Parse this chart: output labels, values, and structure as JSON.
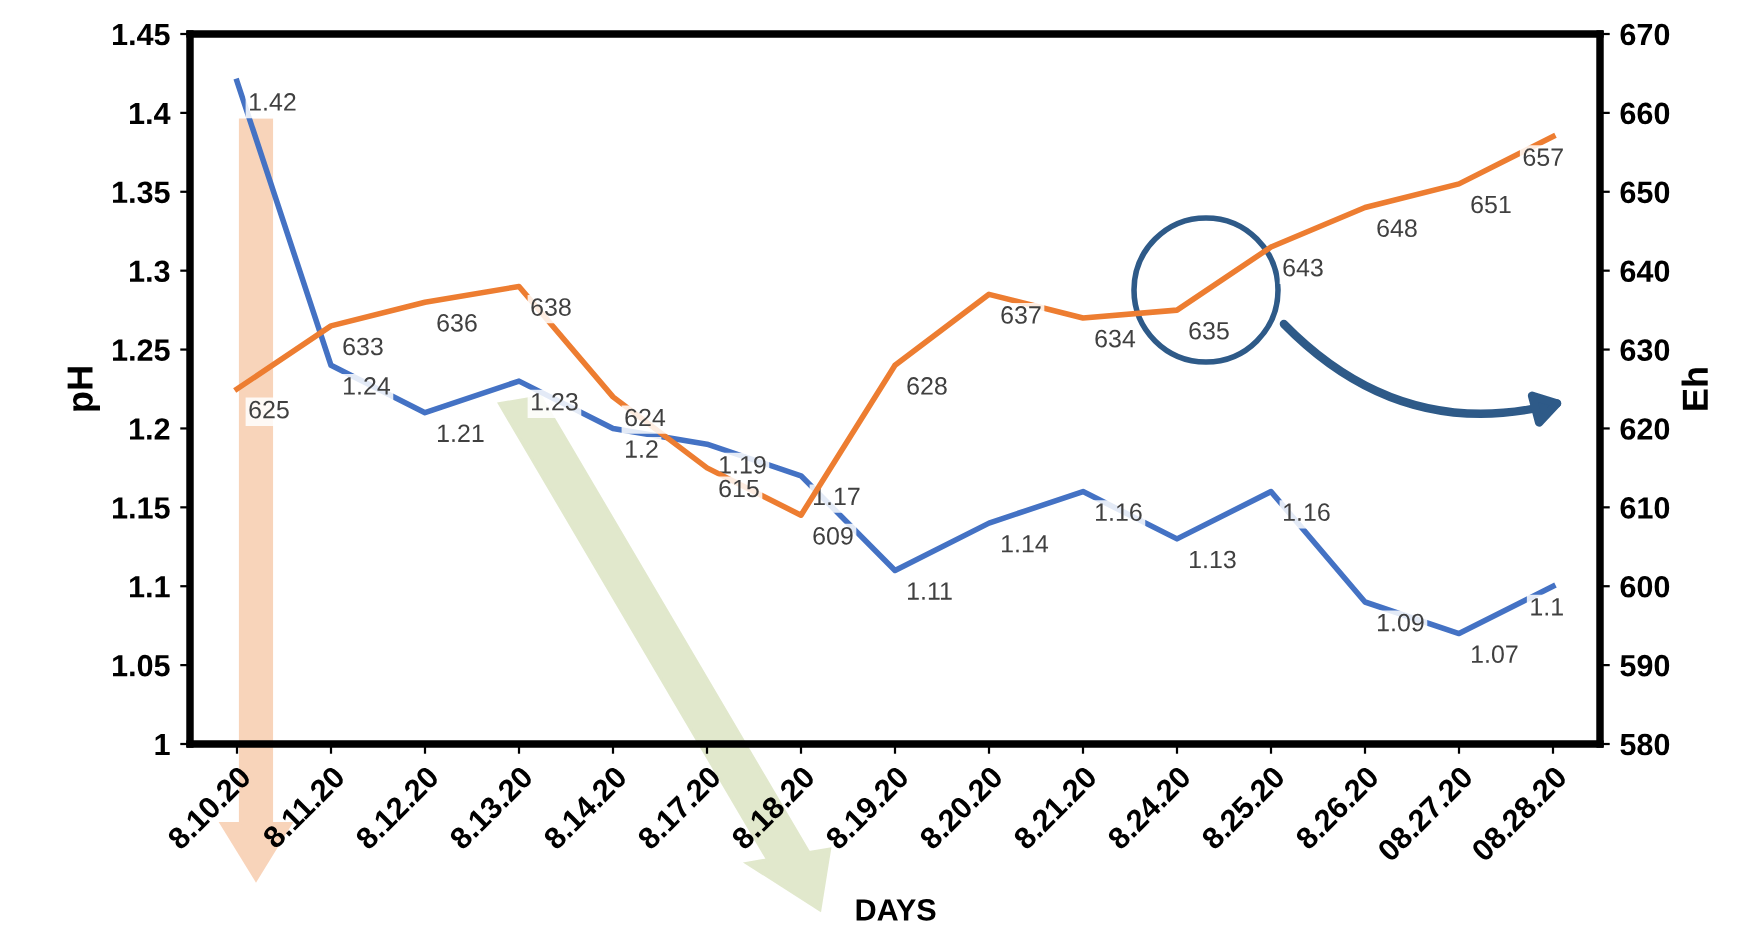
{
  "chart_data": {
    "type": "line",
    "xlabel": "DAYS",
    "ylabel": "pH",
    "y2label": "Eh",
    "categories": [
      "8.10.20",
      "8.11.20",
      "8.12.20",
      "8.13.20",
      "8.14.20",
      "8.17.20",
      "8.18.20",
      "8.19.20",
      "8.20.20",
      "8.21.20",
      "8.24.20",
      "8.25.20",
      "8.26.20",
      "08.27.20",
      "08.28.20"
    ],
    "series": [
      {
        "color": "#4472c4",
        "values": [
          1.42,
          1.24,
          1.21,
          1.23,
          1.2,
          1.19,
          1.17,
          1.11,
          1.14,
          1.16,
          1.13,
          1.16,
          1.09,
          1.07,
          1.1
        ]
      },
      {
        "color": "#ed7d31",
        "axis": "y2",
        "values": [
          625,
          633,
          636,
          638,
          624,
          615,
          609,
          628,
          637,
          634,
          635,
          643,
          648,
          651,
          657
        ]
      }
    ],
    "ylim": [
      1,
      1.45
    ],
    "yticks": [
      1,
      1.05,
      1.1,
      1.15,
      1.2,
      1.25,
      1.3,
      1.35,
      1.4,
      1.45
    ],
    "y2lim": [
      580,
      670
    ],
    "y2ticks": [
      580,
      590,
      600,
      610,
      620,
      630,
      640,
      650,
      660,
      670
    ],
    "data_labels": true,
    "grid": false,
    "legend": false,
    "marker": "none",
    "line_style": "solid"
  }
}
